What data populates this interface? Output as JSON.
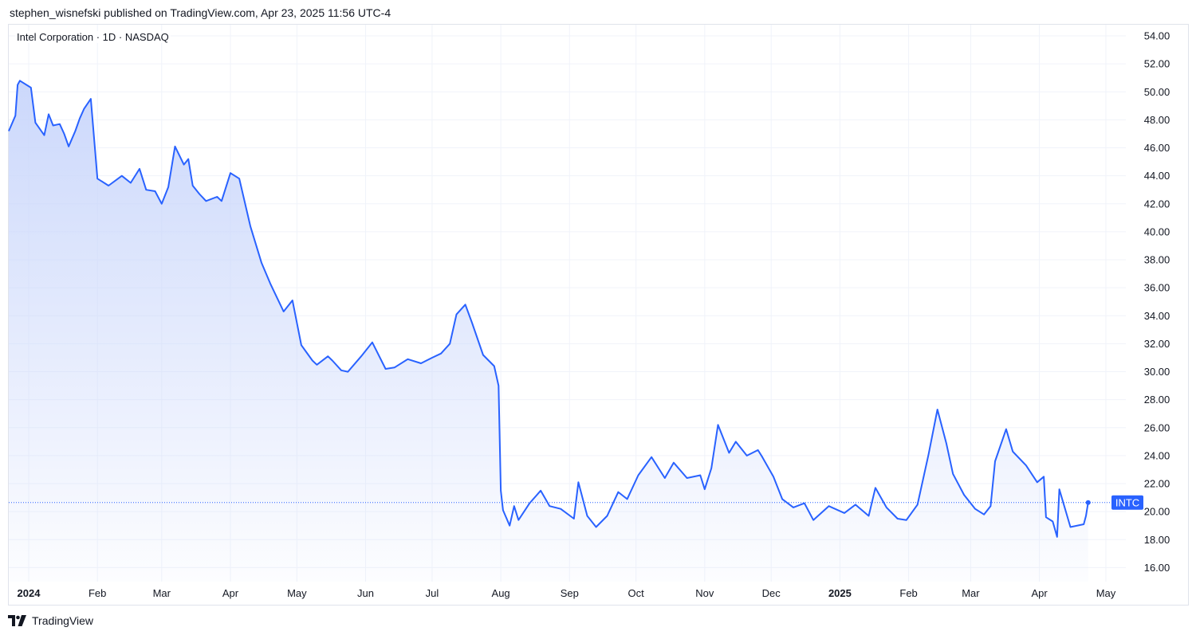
{
  "header": {
    "published": "stephen_wisnefski published on TradingView.com, Apr 23, 2025 11:56 UTC-4"
  },
  "legend": {
    "title": "Intel Corporation · 1D · NASDAQ"
  },
  "footer": {
    "brand": "TradingView",
    "logo_icon": "tradingview-logo-icon"
  },
  "colors": {
    "line": "#2962ff",
    "fill_top": "#c9d6fb",
    "grid": "#f0f3fa",
    "badge": "#2962ff"
  },
  "chart_data": {
    "type": "area",
    "symbol": "INTC",
    "title": "Intel Corporation · 1D · NASDAQ",
    "last_value": 20.65,
    "x_ticks": [
      {
        "label": "2024",
        "date": "2024-01-01",
        "bold": true
      },
      {
        "label": "Feb",
        "date": "2024-02-01",
        "bold": false
      },
      {
        "label": "Mar",
        "date": "2024-03-01",
        "bold": false
      },
      {
        "label": "Apr",
        "date": "2024-04-01",
        "bold": false
      },
      {
        "label": "May",
        "date": "2024-05-01",
        "bold": false
      },
      {
        "label": "Jun",
        "date": "2024-06-01",
        "bold": false
      },
      {
        "label": "Jul",
        "date": "2024-07-01",
        "bold": false
      },
      {
        "label": "Aug",
        "date": "2024-08-01",
        "bold": false
      },
      {
        "label": "Sep",
        "date": "2024-09-01",
        "bold": false
      },
      {
        "label": "Oct",
        "date": "2024-10-01",
        "bold": false
      },
      {
        "label": "Nov",
        "date": "2024-11-01",
        "bold": false
      },
      {
        "label": "Dec",
        "date": "2024-12-01",
        "bold": false
      },
      {
        "label": "2025",
        "date": "2025-01-01",
        "bold": true
      },
      {
        "label": "Feb",
        "date": "2025-02-01",
        "bold": false
      },
      {
        "label": "Mar",
        "date": "2025-03-01",
        "bold": false
      },
      {
        "label": "Apr",
        "date": "2025-04-01",
        "bold": false
      },
      {
        "label": "May",
        "date": "2025-05-01",
        "bold": false
      }
    ],
    "y_ticks": [
      "16.00",
      "18.00",
      "20.00",
      "22.00",
      "24.00",
      "26.00",
      "28.00",
      "30.00",
      "32.00",
      "34.00",
      "36.00",
      "38.00",
      "40.00",
      "42.00",
      "44.00",
      "46.00",
      "48.00",
      "50.00",
      "52.00",
      "54.00"
    ],
    "xlim": [
      "2023-12-23",
      "2025-05-10"
    ],
    "ylim": [
      15.0,
      54.8
    ],
    "grid": true,
    "series": [
      {
        "x": [
          "2023-12-22",
          "2023-12-26",
          "2023-12-27",
          "2023-12-28",
          "2024-01-02",
          "2024-01-04",
          "2024-01-08",
          "2024-01-10",
          "2024-01-12",
          "2024-01-15",
          "2024-01-17",
          "2024-01-19",
          "2024-01-22",
          "2024-01-24",
          "2024-01-26",
          "2024-01-29",
          "2024-02-01",
          "2024-02-06",
          "2024-02-12",
          "2024-02-16",
          "2024-02-20",
          "2024-02-23",
          "2024-02-27",
          "2024-03-01",
          "2024-03-04",
          "2024-03-07",
          "2024-03-11",
          "2024-03-13",
          "2024-03-15",
          "2024-03-18",
          "2024-03-21",
          "2024-03-26",
          "2024-03-28",
          "2024-04-01",
          "2024-04-05",
          "2024-04-10",
          "2024-04-15",
          "2024-04-19",
          "2024-04-25",
          "2024-04-29",
          "2024-05-03",
          "2024-05-08",
          "2024-05-10",
          "2024-05-15",
          "2024-05-17",
          "2024-05-21",
          "2024-05-24",
          "2024-05-30",
          "2024-06-04",
          "2024-06-10",
          "2024-06-14",
          "2024-06-20",
          "2024-06-26",
          "2024-07-01",
          "2024-07-05",
          "2024-07-09",
          "2024-07-12",
          "2024-07-16",
          "2024-07-19",
          "2024-07-24",
          "2024-07-29",
          "2024-07-31",
          "2024-08-01",
          "2024-08-02",
          "2024-08-05",
          "2024-08-07",
          "2024-08-09",
          "2024-08-14",
          "2024-08-19",
          "2024-08-23",
          "2024-08-28",
          "2024-09-03",
          "2024-09-05",
          "2024-09-09",
          "2024-09-13",
          "2024-09-18",
          "2024-09-23",
          "2024-09-27",
          "2024-10-02",
          "2024-10-08",
          "2024-10-14",
          "2024-10-18",
          "2024-10-24",
          "2024-10-30",
          "2024-11-01",
          "2024-11-04",
          "2024-11-07",
          "2024-11-12",
          "2024-11-15",
          "2024-11-20",
          "2024-11-25",
          "2024-11-27",
          "2024-12-02",
          "2024-12-06",
          "2024-12-11",
          "2024-12-16",
          "2024-12-20",
          "2024-12-27",
          "2025-01-03",
          "2025-01-08",
          "2025-01-14",
          "2025-01-17",
          "2025-01-22",
          "2025-01-27",
          "2025-01-31",
          "2025-02-05",
          "2025-02-10",
          "2025-02-14",
          "2025-02-18",
          "2025-02-21",
          "2025-02-26",
          "2025-03-03",
          "2025-03-07",
          "2025-03-10",
          "2025-03-12",
          "2025-03-17",
          "2025-03-20",
          "2025-03-26",
          "2025-03-31",
          "2025-04-03",
          "2025-04-04",
          "2025-04-07",
          "2025-04-09",
          "2025-04-10",
          "2025-04-15",
          "2025-04-21",
          "2025-04-22",
          "2025-04-23"
        ],
        "values": [
          47.2,
          48.3,
          50.5,
          50.8,
          50.3,
          47.8,
          46.9,
          48.4,
          47.6,
          47.7,
          47.0,
          46.1,
          47.2,
          48.1,
          48.8,
          49.5,
          43.8,
          43.3,
          44.0,
          43.5,
          44.5,
          43.0,
          42.9,
          42.0,
          43.2,
          46.1,
          44.8,
          45.2,
          43.3,
          42.7,
          42.2,
          42.5,
          42.2,
          44.2,
          43.8,
          40.4,
          37.8,
          36.3,
          34.3,
          35.1,
          31.9,
          30.8,
          30.5,
          31.1,
          30.8,
          30.1,
          30.0,
          31.1,
          32.1,
          30.2,
          30.3,
          30.9,
          30.6,
          31.0,
          31.3,
          32.0,
          34.1,
          34.8,
          33.5,
          31.2,
          30.4,
          29.0,
          21.5,
          20.1,
          19.0,
          20.4,
          19.4,
          20.6,
          21.5,
          20.4,
          20.2,
          19.5,
          22.1,
          19.7,
          18.9,
          19.7,
          21.4,
          20.9,
          22.6,
          23.9,
          22.4,
          23.5,
          22.4,
          22.6,
          21.6,
          23.1,
          26.2,
          24.2,
          25.0,
          24.0,
          24.4,
          23.9,
          22.5,
          20.9,
          20.3,
          20.6,
          19.4,
          20.4,
          19.9,
          20.5,
          19.7,
          21.7,
          20.3,
          19.5,
          19.4,
          20.5,
          24.1,
          27.3,
          24.9,
          22.7,
          21.2,
          20.2,
          19.8,
          20.4,
          23.6,
          25.9,
          24.3,
          23.3,
          22.1,
          22.5,
          19.6,
          19.3,
          18.2,
          21.6,
          18.9,
          19.1,
          19.7,
          20.65
        ]
      }
    ]
  }
}
